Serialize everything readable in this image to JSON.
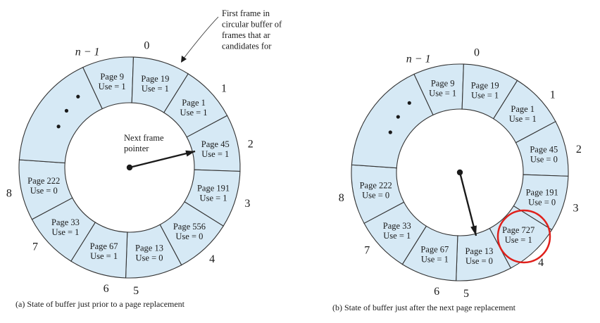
{
  "colors": {
    "frame_fill": "#d6e9f5",
    "outline": "#333333",
    "highlight_ring": "#e0201b"
  },
  "diagrams": [
    {
      "id": "a",
      "caption": "(a) State of buffer just prior to a page replacement",
      "pointer_label": "Next frame pointer",
      "pointer_label_lines": [
        "Next frame",
        "pointer"
      ],
      "pointer_at_slot": "2",
      "annotation_lines": [
        "First frame in",
        "circular buffer of",
        "frames that ar",
        "candidates for"
      ],
      "slots": [
        {
          "id": "n-1",
          "index": "n − 1",
          "page": "Page 9",
          "use": "Use = 1"
        },
        {
          "id": "0",
          "index": "0",
          "page": "Page 19",
          "use": "Use = 1"
        },
        {
          "id": "1",
          "index": "1",
          "page": "Page 1",
          "use": "Use = 1"
        },
        {
          "id": "2",
          "index": "2",
          "page": "Page 45",
          "use": "Use = 1"
        },
        {
          "id": "3",
          "index": "3",
          "page": "Page 191",
          "use": "Use = 1"
        },
        {
          "id": "4",
          "index": "4",
          "page": "Page 556",
          "use": "Use = 0"
        },
        {
          "id": "5",
          "index": "5",
          "page": "Page 13",
          "use": "Use = 0"
        },
        {
          "id": "6",
          "index": "6",
          "page": "Page 67",
          "use": "Use = 1"
        },
        {
          "id": "7",
          "index": "7",
          "page": "Page 33",
          "use": "Use = 1"
        },
        {
          "id": "8",
          "index": "8",
          "page": "Page 222",
          "use": "Use = 0"
        },
        {
          "id": "dots",
          "index": "",
          "page": "",
          "use": "",
          "ellipsis": true
        }
      ]
    },
    {
      "id": "b",
      "caption": "(b) State of buffer just after the next page replacement",
      "pointer_at_slot": "5",
      "highlighted_slot": "4",
      "slots": [
        {
          "id": "n-1",
          "index": "n − 1",
          "page": "Page 9",
          "use": "Use = 1"
        },
        {
          "id": "0",
          "index": "0",
          "page": "Page 19",
          "use": "Use = 1"
        },
        {
          "id": "1",
          "index": "1",
          "page": "Page 1",
          "use": "Use = 1"
        },
        {
          "id": "2",
          "index": "2",
          "page": "Page 45",
          "use": "Use = 0"
        },
        {
          "id": "3",
          "index": "3",
          "page": "Page 191",
          "use": "Use = 0"
        },
        {
          "id": "4",
          "index": "4",
          "page": "Page 727",
          "use": "Use = 1"
        },
        {
          "id": "5",
          "index": "5",
          "page": "Page 13",
          "use": "Use = 0"
        },
        {
          "id": "6",
          "index": "6",
          "page": "Page 67",
          "use": "Use = 1"
        },
        {
          "id": "7",
          "index": "7",
          "page": "Page 33",
          "use": "Use = 1"
        },
        {
          "id": "8",
          "index": "8",
          "page": "Page 222",
          "use": "Use = 0"
        },
        {
          "id": "dots",
          "index": "",
          "page": "",
          "use": "",
          "ellipsis": true
        }
      ]
    }
  ]
}
